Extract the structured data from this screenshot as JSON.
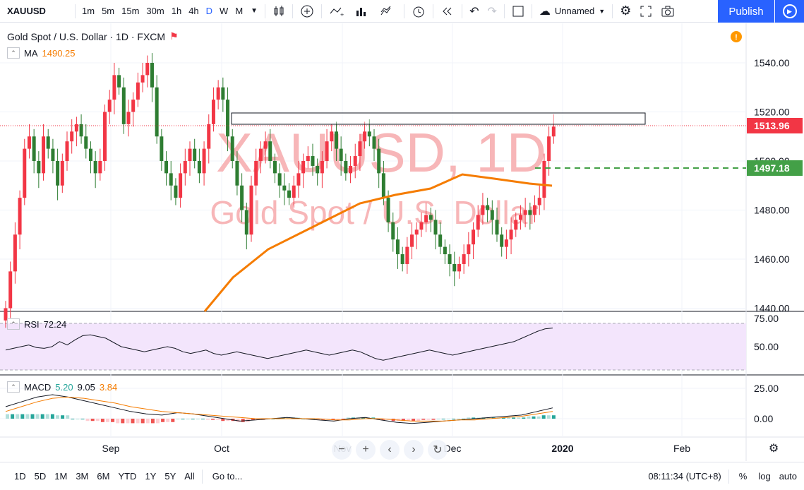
{
  "toolbar": {
    "symbol": "XAUUSD",
    "intervals": [
      "1m",
      "5m",
      "15m",
      "30m",
      "1h",
      "4h",
      "D",
      "W",
      "M"
    ],
    "active_interval": "D",
    "layout_name": "Unnamed",
    "publish_label": "Publish"
  },
  "chart": {
    "title": "Gold Spot / U.S. Dollar · 1D · FXCM",
    "watermark_symbol": "XAUUSD, 1D",
    "watermark_name": "Gold Spot / U.S. Dollar",
    "ma_label": "MA",
    "ma_value": "1490.25",
    "current_price": "1513.96",
    "ma_price_tag": "1497.18",
    "price_axis": [
      "1540.00",
      "1520.00",
      "1500.00",
      "1480.00",
      "1460.00",
      "1440.00"
    ],
    "colors": {
      "up": "#f23645",
      "down": "#2e7d32",
      "ma": "#f57c00",
      "current": "#f23645",
      "ma_tag": "#43a047"
    }
  },
  "rsi": {
    "label": "RSI",
    "value": "72.24",
    "axis": [
      "75.00",
      "50.00"
    ]
  },
  "macd": {
    "label": "MACD",
    "value1": "5.20",
    "value2": "9.05",
    "value3": "3.84",
    "axis": [
      "25.00",
      "0.00"
    ]
  },
  "time_axis": [
    "Sep",
    "Oct",
    "Nov",
    "Dec",
    "2020",
    "Feb"
  ],
  "bottombar": {
    "ranges": [
      "1D",
      "5D",
      "1M",
      "3M",
      "6M",
      "YTD",
      "1Y",
      "5Y",
      "All"
    ],
    "goto_label": "Go to...",
    "clock": "08:11:34 (UTC+8)",
    "percent_label": "%",
    "log_label": "log",
    "auto_label": "auto"
  }
}
